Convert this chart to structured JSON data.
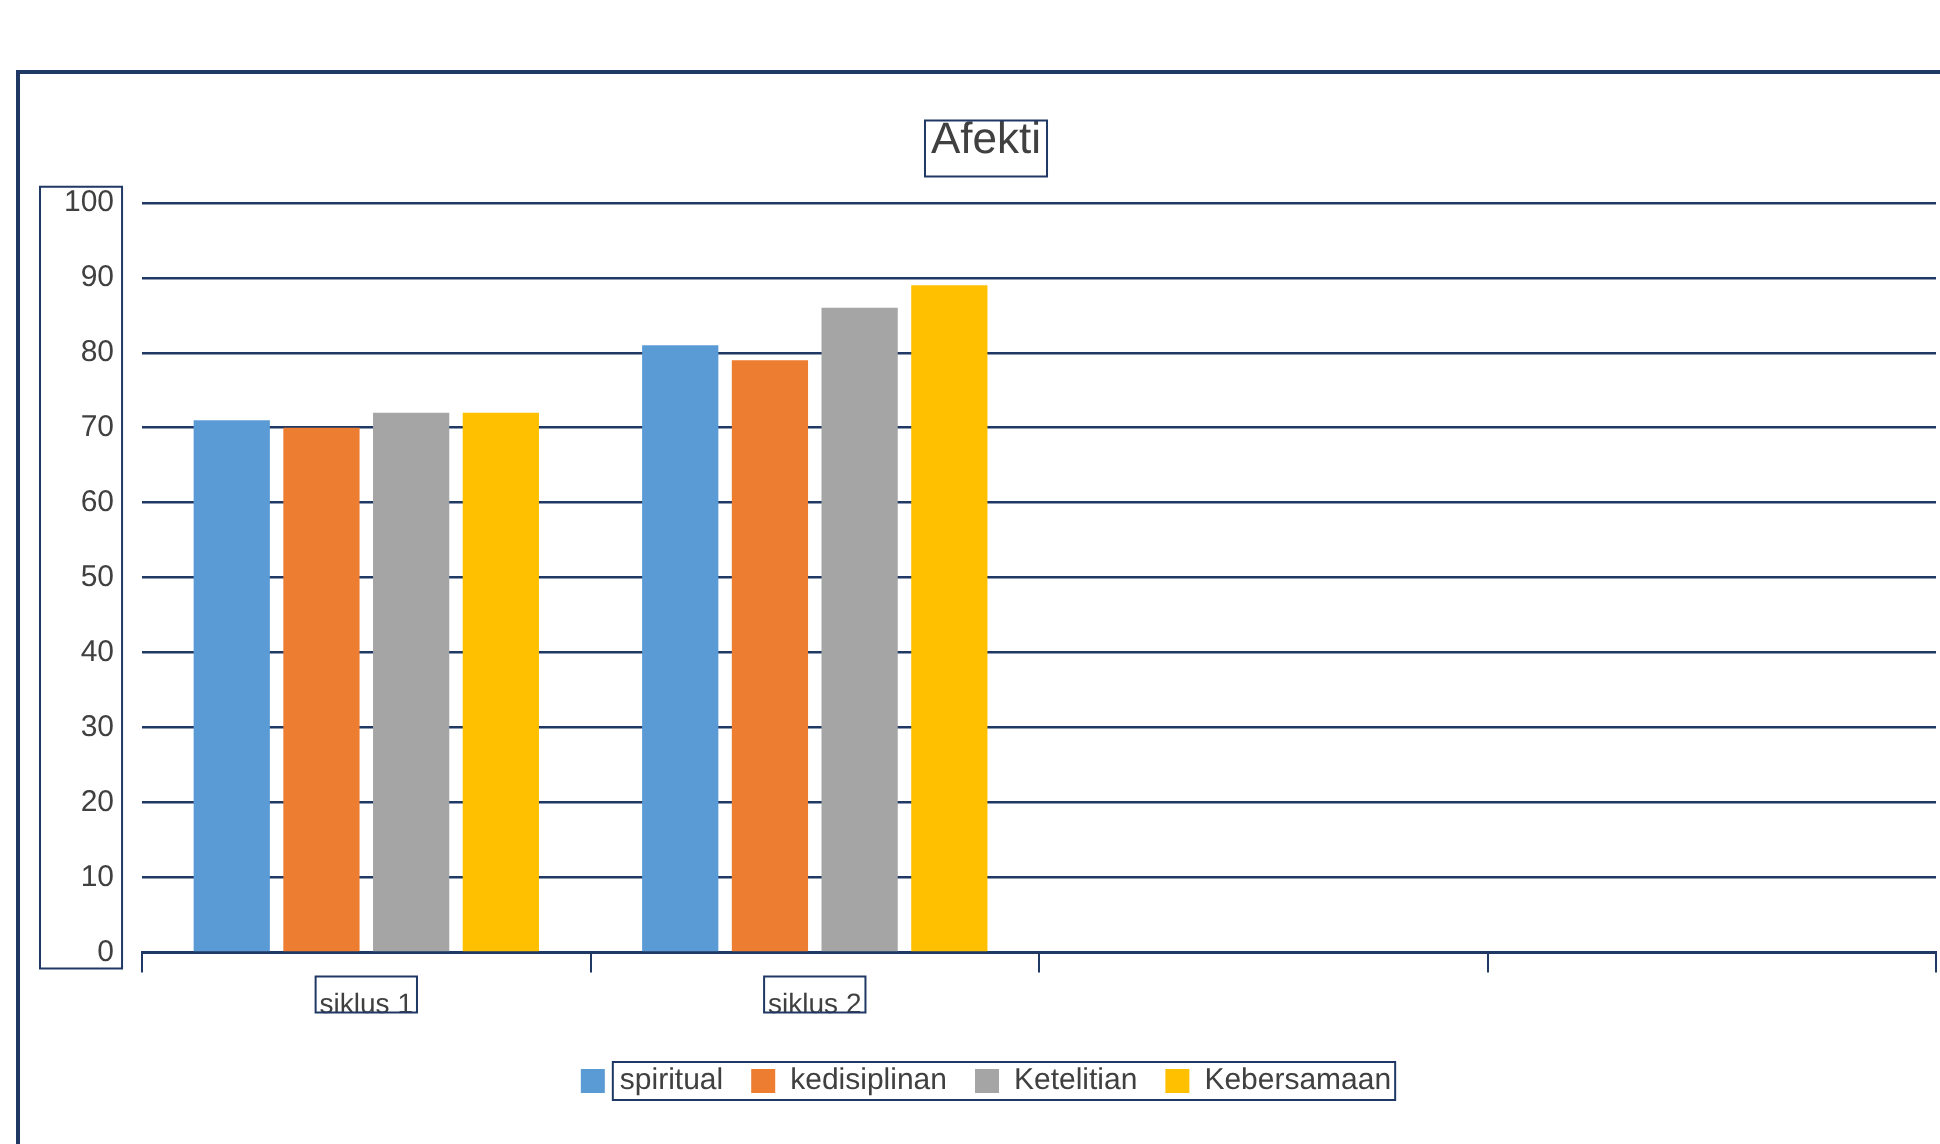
{
  "chart_data": {
    "type": "bar",
    "title": "Afekti",
    "categories": [
      "siklus 1",
      "siklus 2",
      null,
      null
    ],
    "series": [
      {
        "name": "spiritual",
        "color": "#5b9bd5",
        "values": [
          71,
          81,
          null,
          null
        ]
      },
      {
        "name": "kedisiplinan",
        "color": "#ed7d31",
        "values": [
          70,
          79,
          null,
          null
        ]
      },
      {
        "name": "Ketelitian",
        "color": "#a5a5a5",
        "values": [
          72,
          86,
          null,
          null
        ]
      },
      {
        "name": "Kebersamaan",
        "color": "#ffc000",
        "values": [
          72,
          89,
          null,
          null
        ]
      }
    ],
    "ylim": [
      0,
      100
    ],
    "yticks": [
      0,
      10,
      20,
      30,
      40,
      50,
      60,
      70,
      80,
      90,
      100
    ],
    "grid": "y",
    "legend": "bottom"
  }
}
